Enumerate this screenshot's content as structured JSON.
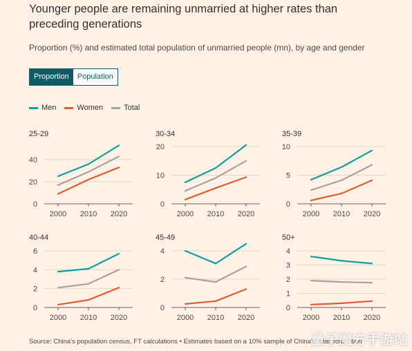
{
  "header": {
    "title": "Younger people are remaining unmarried at higher rates than preceding generations",
    "subtitle": "Proportion (%) and estimated total population of unmarried people (mn), by age and gender"
  },
  "toggle": {
    "proportion_label": "Proportion",
    "population_label": "Population",
    "selected": "Proportion"
  },
  "legend": [
    {
      "label": "Men",
      "color": "#0f9e9a"
    },
    {
      "label": "Women",
      "color": "#e55b2f"
    },
    {
      "label": "Total",
      "color": "#a6a29e"
    }
  ],
  "footer": {
    "source": "Source: China's population census, FT calculations • Estimates based on a 10% sample of China's total population"
  },
  "watermark": "量子魔方手游站",
  "chart_data": [
    {
      "type": "line",
      "title": "25-29",
      "x": [
        "2000",
        "2010",
        "2020"
      ],
      "ylim": [
        0,
        52
      ],
      "yticks": [
        0,
        20,
        40
      ],
      "series": [
        {
          "name": "Men",
          "values": [
            25,
            36,
            53
          ]
        },
        {
          "name": "Women",
          "values": [
            9,
            22,
            33
          ]
        },
        {
          "name": "Total",
          "values": [
            17,
            29,
            43
          ]
        }
      ]
    },
    {
      "type": "line",
      "title": "30-34",
      "x": [
        "2000",
        "2010",
        "2020"
      ],
      "ylim": [
        0,
        20
      ],
      "yticks": [
        0,
        10,
        20
      ],
      "series": [
        {
          "name": "Men",
          "values": [
            7.5,
            12.5,
            20.5
          ]
        },
        {
          "name": "Women",
          "values": [
            1.5,
            5.5,
            9.3
          ]
        },
        {
          "name": "Total",
          "values": [
            4.5,
            9,
            15
          ]
        }
      ]
    },
    {
      "type": "line",
      "title": "35-39",
      "x": [
        "2000",
        "2010",
        "2020"
      ],
      "ylim": [
        0,
        10
      ],
      "yticks": [
        0,
        5,
        10
      ],
      "series": [
        {
          "name": "Men",
          "values": [
            4.2,
            6.4,
            9.3
          ]
        },
        {
          "name": "Women",
          "values": [
            0.6,
            1.8,
            4.1
          ]
        },
        {
          "name": "Total",
          "values": [
            2.4,
            4.1,
            6.8
          ]
        }
      ]
    },
    {
      "type": "line",
      "title": "40-44",
      "x": [
        "2000",
        "2010",
        "2020"
      ],
      "ylim": [
        0,
        6
      ],
      "yticks": [
        0,
        2,
        4,
        6
      ],
      "series": [
        {
          "name": "Men",
          "values": [
            3.8,
            4.1,
            5.7
          ]
        },
        {
          "name": "Women",
          "values": [
            0.3,
            0.8,
            2.1
          ]
        },
        {
          "name": "Total",
          "values": [
            2.1,
            2.5,
            4.0
          ]
        }
      ]
    },
    {
      "type": "line",
      "title": "45-49",
      "x": [
        "2000",
        "2010",
        "2020"
      ],
      "ylim": [
        0,
        4
      ],
      "yticks": [
        0,
        2,
        4
      ],
      "series": [
        {
          "name": "Men",
          "values": [
            4.0,
            3.1,
            4.5
          ]
        },
        {
          "name": "Women",
          "values": [
            0.25,
            0.45,
            1.3
          ]
        },
        {
          "name": "Total",
          "values": [
            2.1,
            1.8,
            2.9
          ]
        }
      ]
    },
    {
      "type": "line",
      "title": "50+",
      "x": [
        "2000",
        "2010",
        "2020"
      ],
      "ylim": [
        0,
        4
      ],
      "yticks": [
        0,
        1,
        2,
        3,
        4
      ],
      "series": [
        {
          "name": "Men",
          "values": [
            3.6,
            3.3,
            3.1
          ]
        },
        {
          "name": "Women",
          "values": [
            0.2,
            0.3,
            0.45
          ]
        },
        {
          "name": "Total",
          "values": [
            1.9,
            1.8,
            1.75
          ]
        }
      ]
    }
  ]
}
